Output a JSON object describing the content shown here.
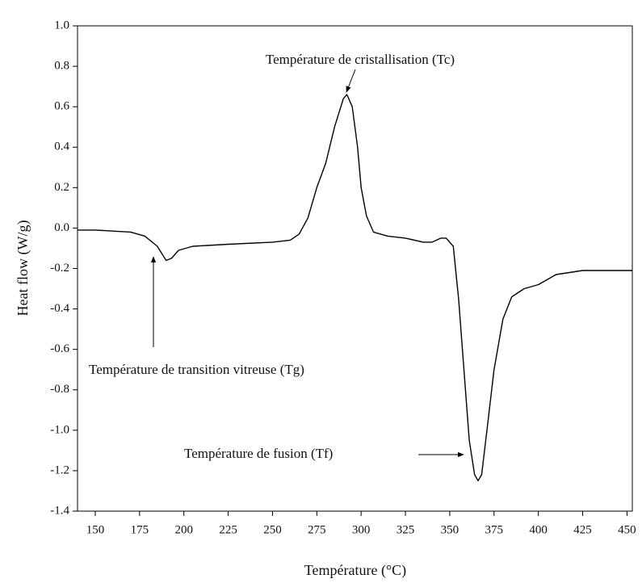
{
  "chart_data": {
    "type": "line",
    "xlabel": "Température (°C)",
    "ylabel": "Heat flow (W/g)",
    "xlim": [
      140,
      453
    ],
    "ylim": [
      -1.4,
      1.0
    ],
    "xticks": [
      150,
      175,
      200,
      225,
      250,
      275,
      300,
      325,
      350,
      375,
      400,
      425,
      450
    ],
    "yticks": [
      {
        "value": 1.0,
        "label": "1.0"
      },
      0.8,
      0.6,
      0.4,
      0.2,
      {
        "value": 0.0,
        "label": "0.0"
      },
      -0.2,
      -0.4,
      -0.6,
      -0.8,
      {
        "value": -1.0,
        "label": "-1.0"
      },
      -1.2,
      -1.4
    ],
    "series": [
      {
        "color": "#000000",
        "x": [
          140,
          150,
          160,
          170,
          178,
          185,
          190,
          193,
          197,
          205,
          225,
          250,
          260,
          265,
          270,
          275,
          280,
          285,
          290,
          292,
          295,
          298,
          300,
          303,
          307,
          315,
          325,
          335,
          340,
          345,
          348,
          352,
          355,
          358,
          361,
          364,
          366,
          368,
          371,
          375,
          380,
          385,
          392,
          400,
          410,
          425,
          453
        ],
        "values": [
          -0.01,
          -0.01,
          -0.015,
          -0.02,
          -0.04,
          -0.09,
          -0.16,
          -0.15,
          -0.11,
          -0.09,
          -0.08,
          -0.07,
          -0.06,
          -0.03,
          0.05,
          0.2,
          0.32,
          0.5,
          0.64,
          0.66,
          0.6,
          0.4,
          0.2,
          0.06,
          -0.02,
          -0.04,
          -0.05,
          -0.07,
          -0.07,
          -0.05,
          -0.05,
          -0.09,
          -0.35,
          -0.7,
          -1.05,
          -1.22,
          -1.25,
          -1.22,
          -1.0,
          -0.7,
          -0.45,
          -0.34,
          -0.3,
          -0.28,
          -0.23,
          -0.21,
          -0.21
        ]
      }
    ],
    "annotations": [
      "Température de cristallisation (Tc)",
      "Température de transition vitreuse (Tg)",
      "Température de fusion (Tf)"
    ]
  }
}
